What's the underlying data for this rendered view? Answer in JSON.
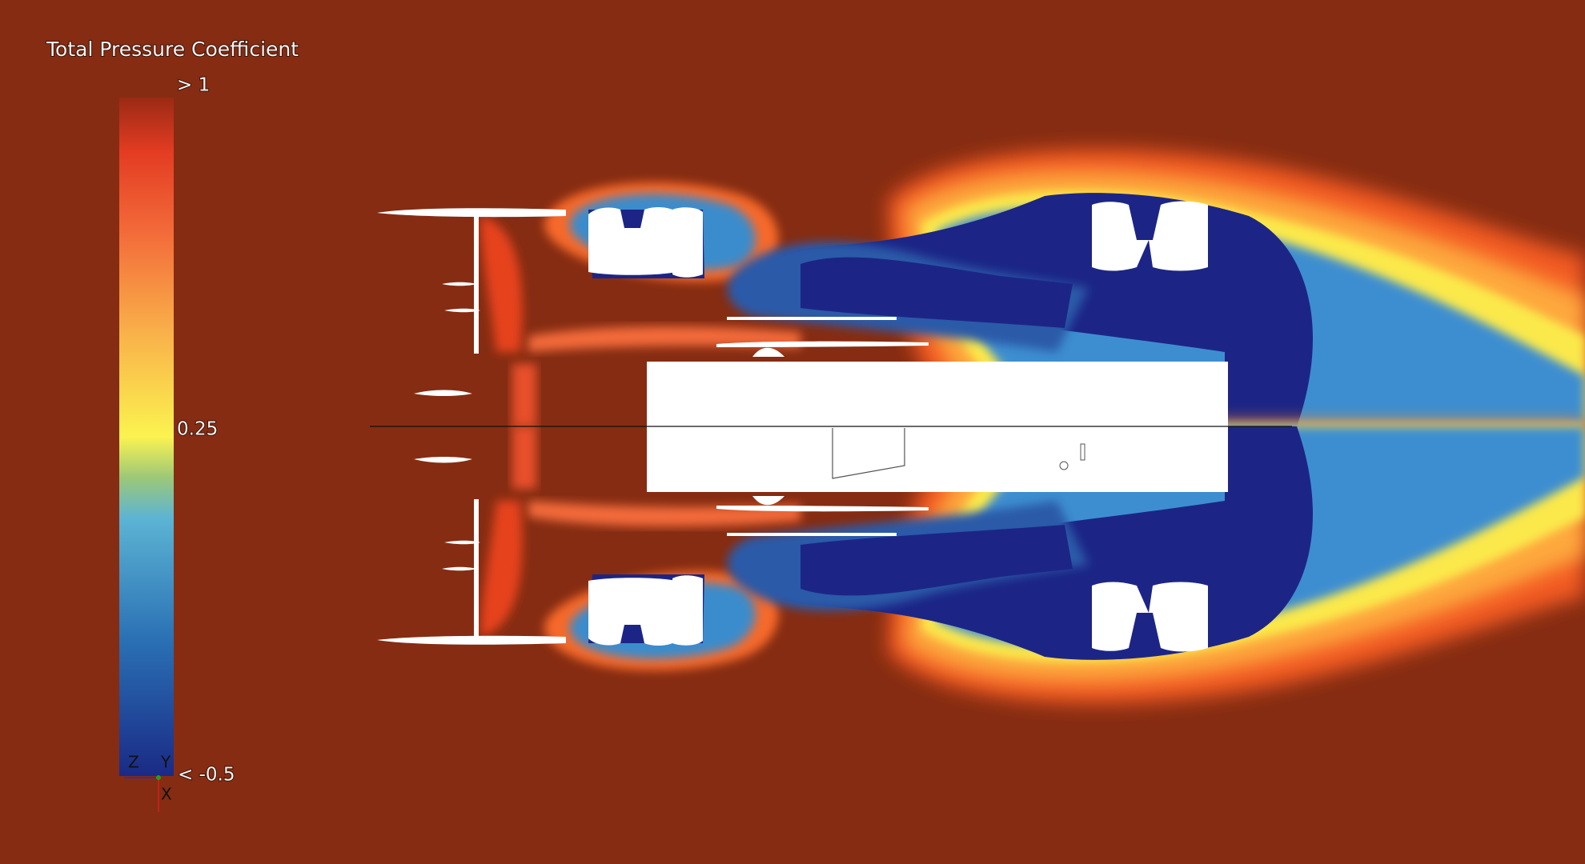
{
  "legend": {
    "title": "Total Pressure Coefficient",
    "labels": [
      "> 1",
      "0.25",
      "< -0.5"
    ]
  },
  "axes": {
    "labels": [
      "Z",
      "Y",
      "X"
    ]
  }
}
